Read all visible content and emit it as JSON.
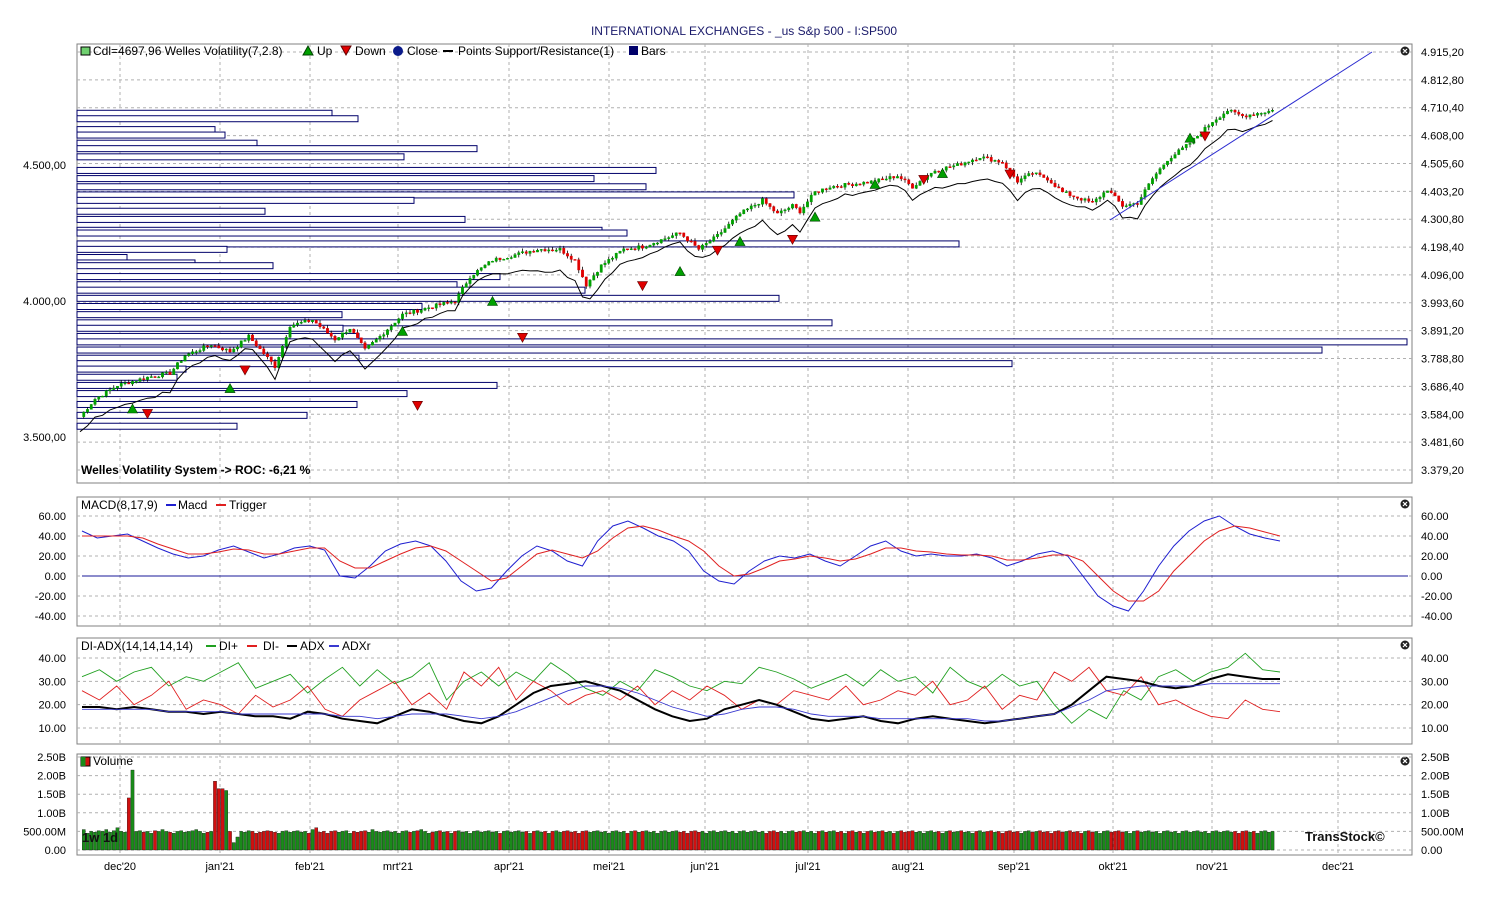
{
  "title": "INTERNATIONAL EXCHANGES - _us S&p 500 - I:SP500",
  "brand": "TransStock©",
  "period_label": "1w 1d",
  "x_labels": [
    "dec'20",
    "jan'21",
    "feb'21",
    "mrt'21",
    "apr'21",
    "mei'21",
    "jun'21",
    "jul'21",
    "aug'21",
    "sep'21",
    "okt'21",
    "nov'21",
    "dec'21"
  ],
  "panels": {
    "price": {
      "legend": [
        "Cdl=4697,96",
        "Welles Volatility(7,2.8)",
        "Up",
        "Down",
        "Close",
        "Points",
        "Support/Resistance(1)",
        "Bars"
      ],
      "roc_text": "Welles Volatility System -> ROC: -6,21 %",
      "left_ticks": [
        "4.500,00",
        "4.000,00",
        "3.500,00"
      ],
      "right_ticks": [
        "4.915,20",
        "4.812,80",
        "4.710,40",
        "4.608,00",
        "4.505,60",
        "4.403,20",
        "4.300,80",
        "4.198,40",
        "4.096,00",
        "3.993,60",
        "3.891,20",
        "3.788,80",
        "3.686,40",
        "3.584,00",
        "3.481,60",
        "3.379,20"
      ]
    },
    "macd": {
      "legend": [
        "MACD(8,17,9)",
        "Macd",
        "Trigger"
      ],
      "ticks": [
        "60.00",
        "40.00",
        "20.00",
        "0.00",
        "-20.00",
        "-40.00"
      ]
    },
    "adx": {
      "legend": [
        "DI-ADX(14,14,14,14)",
        "DI+",
        "DI-",
        "ADX",
        "ADXr"
      ],
      "ticks": [
        "40.00",
        "30.00",
        "20.00",
        "10.00"
      ]
    },
    "volume": {
      "legend": [
        "Volume"
      ],
      "ticks": [
        "2.50B",
        "2.00B",
        "1.50B",
        "1.00B",
        "500.00M",
        "0.00"
      ]
    }
  },
  "colors": {
    "up": "#00a000",
    "down": "#e00000",
    "macd": "#1f1fd0",
    "trigger": "#e02020",
    "adx": "#000000",
    "adxr": "#3a3ad0",
    "di_plus": "#20a020",
    "di_minus": "#e02020",
    "box": "#00006a"
  },
  "chart_data": [
    {
      "type": "candlestick",
      "title": "INTERNATIONAL EXCHANGES - _us S&p 500 - I:SP500",
      "x_range": [
        "2020-11-26",
        "2021-11-22"
      ],
      "ylim": [
        3379.2,
        4915.2
      ],
      "last_close": 4697.96,
      "close_anchors": [
        [
          0,
          3575
        ],
        [
          4,
          3640
        ],
        [
          10,
          3690
        ],
        [
          18,
          3720
        ],
        [
          24,
          3735
        ],
        [
          28,
          3800
        ],
        [
          35,
          3840
        ],
        [
          40,
          3815
        ],
        [
          45,
          3870
        ],
        [
          52,
          3760
        ],
        [
          56,
          3910
        ],
        [
          62,
          3930
        ],
        [
          68,
          3860
        ],
        [
          72,
          3900
        ],
        [
          76,
          3820
        ],
        [
          80,
          3870
        ],
        [
          86,
          3950
        ],
        [
          94,
          3980
        ],
        [
          100,
          4000
        ],
        [
          104,
          4090
        ],
        [
          110,
          4150
        ],
        [
          116,
          4170
        ],
        [
          122,
          4190
        ],
        [
          128,
          4190
        ],
        [
          132,
          4150
        ],
        [
          135,
          4060
        ],
        [
          139,
          4130
        ],
        [
          145,
          4190
        ],
        [
          150,
          4200
        ],
        [
          156,
          4230
        ],
        [
          160,
          4250
        ],
        [
          165,
          4190
        ],
        [
          170,
          4240
        ],
        [
          176,
          4320
        ],
        [
          182,
          4370
        ],
        [
          186,
          4320
        ],
        [
          190,
          4350
        ],
        [
          192,
          4330
        ],
        [
          196,
          4400
        ],
        [
          200,
          4420
        ],
        [
          206,
          4430
        ],
        [
          212,
          4440
        ],
        [
          218,
          4460
        ],
        [
          222,
          4420
        ],
        [
          228,
          4480
        ],
        [
          234,
          4500
        ],
        [
          240,
          4530
        ],
        [
          246,
          4510
        ],
        [
          250,
          4440
        ],
        [
          254,
          4470
        ],
        [
          258,
          4450
        ],
        [
          262,
          4400
        ],
        [
          266,
          4380
        ],
        [
          270,
          4360
        ],
        [
          274,
          4410
        ],
        [
          278,
          4350
        ],
        [
          282,
          4360
        ],
        [
          286,
          4450
        ],
        [
          290,
          4520
        ],
        [
          296,
          4580
        ],
        [
          302,
          4660
        ],
        [
          306,
          4700
        ],
        [
          310,
          4680
        ],
        [
          314,
          4690
        ],
        [
          318,
          4700
        ]
      ],
      "points_up": [
        3585,
        3660,
        3870,
        3980,
        4090,
        4200,
        4290,
        4410,
        4450,
        4580
      ],
      "points_down": [
        3620,
        3780,
        3650,
        3900,
        4090,
        4220,
        4260,
        4480,
        4500,
        4640
      ],
      "support_resistance": [
        [
          3584,
          3720
        ],
        [
          4710,
          4710
        ]
      ],
      "bars_price_levels": [
        4690,
        4670,
        4630,
        4610,
        4580,
        4560,
        4530,
        4480,
        4450,
        4420,
        4390,
        4370,
        4330,
        4300,
        4260,
        4250,
        4210,
        4190,
        4160,
        4140,
        4130,
        4090,
        4060,
        4040,
        4010,
        3980,
        3950,
        3920,
        3900,
        3870,
        3850,
        3820,
        3790,
        3770,
        3750,
        3720,
        3690,
        3660,
        3620,
        3580,
        3540
      ]
    },
    {
      "type": "line",
      "title": "MACD(8,17,9)",
      "ylim": [
        -45,
        65
      ],
      "series": [
        {
          "name": "Macd",
          "values": [
            45,
            38,
            40,
            42,
            35,
            28,
            22,
            18,
            20,
            26,
            30,
            24,
            18,
            22,
            28,
            30,
            26,
            0,
            -2,
            10,
            25,
            32,
            35,
            30,
            15,
            -5,
            -15,
            -12,
            5,
            20,
            30,
            25,
            15,
            10,
            35,
            50,
            55,
            48,
            40,
            35,
            25,
            5,
            -5,
            -8,
            5,
            15,
            20,
            18,
            22,
            15,
            10,
            20,
            30,
            35,
            25,
            20,
            22,
            20,
            20,
            22,
            18,
            10,
            15,
            22,
            25,
            20,
            0,
            -20,
            -30,
            -35,
            -15,
            10,
            30,
            45,
            55,
            60,
            50,
            42,
            38,
            35
          ]
        },
        {
          "name": "Trigger",
          "values": [
            40,
            40,
            40,
            40,
            38,
            32,
            27,
            22,
            22,
            24,
            27,
            26,
            22,
            22,
            25,
            28,
            28,
            15,
            8,
            8,
            15,
            22,
            28,
            30,
            25,
            15,
            5,
            -5,
            -2,
            10,
            22,
            26,
            22,
            18,
            25,
            38,
            48,
            50,
            46,
            40,
            35,
            25,
            10,
            0,
            2,
            8,
            15,
            17,
            20,
            18,
            15,
            17,
            22,
            28,
            28,
            25,
            24,
            22,
            21,
            21,
            20,
            16,
            16,
            18,
            21,
            21,
            15,
            0,
            -15,
            -25,
            -25,
            -15,
            5,
            20,
            35,
            45,
            50,
            48,
            44,
            40
          ]
        }
      ]
    },
    {
      "type": "line",
      "title": "DI-ADX(14,14,14,14)",
      "ylim": [
        5,
        45
      ],
      "series": [
        {
          "name": "DI+",
          "values": [
            32,
            35,
            30,
            34,
            36,
            28,
            32,
            30,
            34,
            38,
            27,
            30,
            33,
            25,
            31,
            36,
            28,
            35,
            29,
            32,
            38,
            22,
            30,
            34,
            28,
            34,
            30,
            38,
            33,
            27,
            24,
            30,
            26,
            35,
            32,
            28,
            26,
            30,
            29,
            36,
            34,
            31,
            27,
            30,
            33,
            28,
            35,
            30,
            32,
            25,
            36,
            30,
            27,
            33,
            28,
            30,
            20,
            12,
            18,
            14,
            26,
            22,
            32,
            35,
            30,
            34,
            36,
            42,
            35,
            34
          ]
        },
        {
          "name": "DI-",
          "values": [
            26,
            22,
            28,
            20,
            24,
            30,
            18,
            22,
            20,
            16,
            24,
            19,
            22,
            28,
            18,
            15,
            22,
            26,
            30,
            20,
            25,
            18,
            34,
            28,
            36,
            22,
            30,
            26,
            20,
            24,
            26,
            22,
            28,
            20,
            26,
            22,
            28,
            24,
            18,
            22,
            20,
            26,
            24,
            22,
            28,
            20,
            22,
            26,
            24,
            30,
            20,
            22,
            28,
            18,
            24,
            22,
            34,
            30,
            36,
            26,
            24,
            32,
            20,
            22,
            18,
            15,
            14,
            22,
            18,
            17
          ]
        },
        {
          "name": "ADX",
          "values": [
            19,
            19,
            18,
            19,
            18,
            17,
            17,
            16,
            17,
            16,
            15,
            15,
            14,
            17,
            16,
            14,
            13,
            12,
            15,
            18,
            17,
            15,
            13,
            12,
            15,
            20,
            25,
            28,
            29,
            30,
            28,
            26,
            22,
            18,
            15,
            13,
            14,
            18,
            20,
            22,
            20,
            17,
            14,
            13,
            14,
            15,
            13,
            12,
            14,
            15,
            14,
            13,
            12,
            13,
            14,
            15,
            16,
            20,
            26,
            32,
            31,
            30,
            28,
            27,
            28,
            31,
            33,
            32,
            31,
            31
          ]
        },
        {
          "name": "ADXr",
          "values": [
            18,
            18,
            18,
            18,
            18,
            17,
            17,
            17,
            17,
            16,
            16,
            16,
            16,
            16,
            16,
            15,
            15,
            14,
            15,
            16,
            16,
            16,
            15,
            14,
            15,
            17,
            20,
            23,
            26,
            28,
            28,
            27,
            25,
            22,
            19,
            17,
            15,
            16,
            18,
            19,
            19,
            18,
            16,
            15,
            15,
            15,
            14,
            14,
            14,
            14,
            14,
            14,
            13,
            13,
            14,
            15,
            16,
            19,
            22,
            26,
            27,
            28,
            28,
            28,
            28,
            29,
            29,
            29,
            29,
            29
          ]
        }
      ]
    },
    {
      "type": "bar",
      "title": "Volume",
      "ylim": [
        0,
        2500000000
      ],
      "values_billions": [
        0.55,
        0.45,
        0.5,
        0.48,
        0.52,
        0.5,
        0.55,
        0.48,
        0.52,
        0.6,
        0.5,
        0.48,
        1.4,
        2.15,
        0.5,
        0.52,
        0.48,
        0.5,
        0.45,
        0.52,
        0.5,
        0.55,
        0.5,
        0.48,
        0.45,
        0.5,
        0.52,
        0.48,
        0.5,
        0.52,
        0.55,
        0.5,
        0.45,
        0.48,
        0.5,
        1.85,
        1.65,
        1.65,
        1.6,
        0.5,
        0.2,
        0.35,
        0.5,
        0.48,
        0.52,
        0.5,
        0.45,
        0.48,
        0.5,
        0.52,
        0.5,
        0.48,
        0.45,
        0.5,
        0.52,
        0.48,
        0.5,
        0.52,
        0.48,
        0.5,
        0.45,
        0.55,
        0.6,
        0.48,
        0.5,
        0.45,
        0.5,
        0.52,
        0.48,
        0.5,
        0.52,
        0.45,
        0.5,
        0.48,
        0.5,
        0.52,
        0.48,
        0.55,
        0.5,
        0.48,
        0.5,
        0.52,
        0.48,
        0.5,
        0.45,
        0.5,
        0.52,
        0.48,
        0.5,
        0.52,
        0.55,
        0.5,
        0.45,
        0.48,
        0.5,
        0.52,
        0.48,
        0.5,
        0.45,
        0.5,
        0.52,
        0.48,
        0.5,
        0.45,
        0.5,
        0.52,
        0.48,
        0.5,
        0.52,
        0.48,
        0.5,
        0.45,
        0.5,
        0.52,
        0.48,
        0.5,
        0.52,
        0.48,
        0.5,
        0.45,
        0.5,
        0.52,
        0.48,
        0.5,
        0.45,
        0.5,
        0.52,
        0.48,
        0.5,
        0.52,
        0.48,
        0.5,
        0.45,
        0.5,
        0.52,
        0.48,
        0.5,
        0.52,
        0.48,
        0.5,
        0.45,
        0.5,
        0.52,
        0.48,
        0.5,
        0.45,
        0.5,
        0.52,
        0.48,
        0.5,
        0.52,
        0.48,
        0.5,
        0.45,
        0.5,
        0.52,
        0.48,
        0.5,
        0.52,
        0.48,
        0.5,
        0.45,
        0.5,
        0.52,
        0.48,
        0.5,
        0.45,
        0.5,
        0.52,
        0.48,
        0.5,
        0.52,
        0.48,
        0.5,
        0.45,
        0.5,
        0.52,
        0.48,
        0.5,
        0.52,
        0.48,
        0.5,
        0.45,
        0.5,
        0.52,
        0.48,
        0.5,
        0.45,
        0.5,
        0.52,
        0.48,
        0.5,
        0.52,
        0.48,
        0.5,
        0.45,
        0.5,
        0.52,
        0.48,
        0.5,
        0.52,
        0.48,
        0.5,
        0.45,
        0.5,
        0.52,
        0.48,
        0.5,
        0.45,
        0.5,
        0.52,
        0.48,
        0.5,
        0.52,
        0.48,
        0.5,
        0.45,
        0.5,
        0.52,
        0.48,
        0.5,
        0.52,
        0.48,
        0.5,
        0.45,
        0.5,
        0.52,
        0.48,
        0.5,
        0.45,
        0.5,
        0.52,
        0.48,
        0.5,
        0.52,
        0.48,
        0.5,
        0.45,
        0.5,
        0.52,
        0.48,
        0.5,
        0.52,
        0.48,
        0.5,
        0.45,
        0.5,
        0.52,
        0.48,
        0.5,
        0.45,
        0.5,
        0.52,
        0.48,
        0.5,
        0.52,
        0.48,
        0.5,
        0.45,
        0.5,
        0.52,
        0.48,
        0.5,
        0.52,
        0.48,
        0.5,
        0.45,
        0.5,
        0.52,
        0.48,
        0.5,
        0.45,
        0.5,
        0.52,
        0.48,
        0.5,
        0.52,
        0.48,
        0.5,
        0.45,
        0.5,
        0.52,
        0.48,
        0.5,
        0.52,
        0.48,
        0.5,
        0.45,
        0.5,
        0.52,
        0.48,
        0.5,
        0.45,
        0.5,
        0.52,
        0.48,
        0.5,
        0.52,
        0.48,
        0.5,
        0.45,
        0.5,
        0.52,
        0.48,
        0.5,
        0.52,
        0.48,
        0.5,
        0.45,
        0.5,
        0.52,
        0.48,
        0.5,
        0.45,
        0.5,
        0.52,
        0.48,
        0.5,
        0.52,
        0.48,
        0.5,
        0.45,
        0.5,
        0.52,
        0.48,
        0.5,
        0.52,
        0.48,
        0.5,
        0.45,
        0.5,
        0.52,
        0.48,
        0.5,
        0.45,
        0.5,
        0.52,
        0.48,
        0.5,
        0.52,
        0.48,
        0.5,
        0.45,
        0.5,
        0.52,
        0.48,
        0.5,
        0.52,
        0.48,
        0.5,
        0.45,
        0.5
      ]
    }
  ]
}
